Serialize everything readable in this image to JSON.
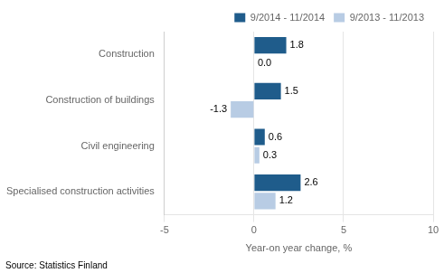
{
  "chart_data": {
    "type": "bar",
    "orientation": "horizontal",
    "categories": [
      "Specialised construction activities",
      "Civil engineering",
      "Construction of buildings",
      "Construction"
    ],
    "series": [
      {
        "name": "9/2014 - 11/2014",
        "color": "#1F5C8B",
        "values": [
          2.6,
          0.6,
          1.5,
          1.8
        ],
        "value_labels": [
          "2.6",
          "0.6",
          "1.5",
          "1.8"
        ]
      },
      {
        "name": "9/2013 - 11/2013",
        "color": "#B8CCE4",
        "values": [
          1.2,
          0.3,
          -1.3,
          0.0
        ],
        "value_labels": [
          "1.2",
          "0.3",
          "-1.3",
          "0.0"
        ]
      }
    ],
    "xlabel": "Year-on year change, %",
    "xlim": [
      -5,
      10
    ],
    "xticks": [
      -5,
      0,
      5,
      10
    ],
    "grid": true,
    "legend": "upper right",
    "data_labels": true,
    "annotations": [
      "Source: Statistics Finland"
    ]
  }
}
